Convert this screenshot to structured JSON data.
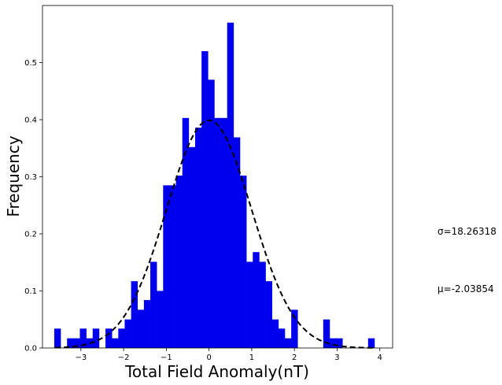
{
  "chart_data": {
    "type": "bar",
    "title": "",
    "xlabel": "Total Field Anomaly(nT)",
    "ylabel": "Frequency",
    "xlim": [
      -3.9,
      4.3
    ],
    "ylim": [
      0,
      0.6
    ],
    "xticks": [
      -3,
      -2,
      -1,
      0,
      1,
      2,
      3,
      4
    ],
    "yticks": [
      0.0,
      0.1,
      0.2,
      0.3,
      0.4,
      0.5
    ],
    "bar_color": "#0000ee",
    "bin_width": 0.15,
    "bins": [
      {
        "x": -3.55,
        "y": 0.034
      },
      {
        "x": -3.4,
        "y": 0.0
      },
      {
        "x": -3.25,
        "y": 0.017
      },
      {
        "x": -3.1,
        "y": 0.017
      },
      {
        "x": -2.95,
        "y": 0.034
      },
      {
        "x": -2.8,
        "y": 0.017
      },
      {
        "x": -2.65,
        "y": 0.034
      },
      {
        "x": -2.5,
        "y": 0.0
      },
      {
        "x": -2.35,
        "y": 0.034
      },
      {
        "x": -2.2,
        "y": 0.017
      },
      {
        "x": -2.05,
        "y": 0.034
      },
      {
        "x": -1.9,
        "y": 0.05
      },
      {
        "x": -1.75,
        "y": 0.117
      },
      {
        "x": -1.6,
        "y": 0.067
      },
      {
        "x": -1.45,
        "y": 0.084
      },
      {
        "x": -1.3,
        "y": 0.151
      },
      {
        "x": -1.15,
        "y": 0.1
      },
      {
        "x": -1.0,
        "y": 0.285
      },
      {
        "x": -0.85,
        "y": 0.285
      },
      {
        "x": -0.7,
        "y": 0.302
      },
      {
        "x": -0.55,
        "y": 0.403
      },
      {
        "x": -0.4,
        "y": 0.352
      },
      {
        "x": -0.25,
        "y": 0.386
      },
      {
        "x": -0.1,
        "y": 0.52
      },
      {
        "x": 0.05,
        "y": 0.47
      },
      {
        "x": 0.2,
        "y": 0.403
      },
      {
        "x": 0.35,
        "y": 0.403
      },
      {
        "x": 0.5,
        "y": 0.57
      },
      {
        "x": 0.65,
        "y": 0.369
      },
      {
        "x": 0.8,
        "y": 0.302
      },
      {
        "x": 0.95,
        "y": 0.151
      },
      {
        "x": 1.1,
        "y": 0.168
      },
      {
        "x": 1.25,
        "y": 0.151
      },
      {
        "x": 1.4,
        "y": 0.117
      },
      {
        "x": 1.55,
        "y": 0.05
      },
      {
        "x": 1.7,
        "y": 0.034
      },
      {
        "x": 1.85,
        "y": 0.017
      },
      {
        "x": 2.0,
        "y": 0.067
      },
      {
        "x": 2.15,
        "y": 0.0
      },
      {
        "x": 2.3,
        "y": 0.0
      },
      {
        "x": 2.45,
        "y": 0.0
      },
      {
        "x": 2.6,
        "y": 0.0
      },
      {
        "x": 2.75,
        "y": 0.05
      },
      {
        "x": 2.9,
        "y": 0.017
      },
      {
        "x": 3.05,
        "y": 0.017
      },
      {
        "x": 3.2,
        "y": 0.0
      },
      {
        "x": 3.35,
        "y": 0.0
      },
      {
        "x": 3.5,
        "y": 0.0
      },
      {
        "x": 3.65,
        "y": 0.0
      },
      {
        "x": 3.8,
        "y": 0.017
      }
    ],
    "fit_curve": {
      "style": "dashed",
      "color": "#000000",
      "distribution": "normal",
      "mean": 0,
      "std": 1,
      "x_range": [
        -3.6,
        3.9
      ]
    },
    "annotations": [
      {
        "text": "σ=18.26318"
      },
      {
        "text": "μ=-2.03854"
      }
    ]
  }
}
